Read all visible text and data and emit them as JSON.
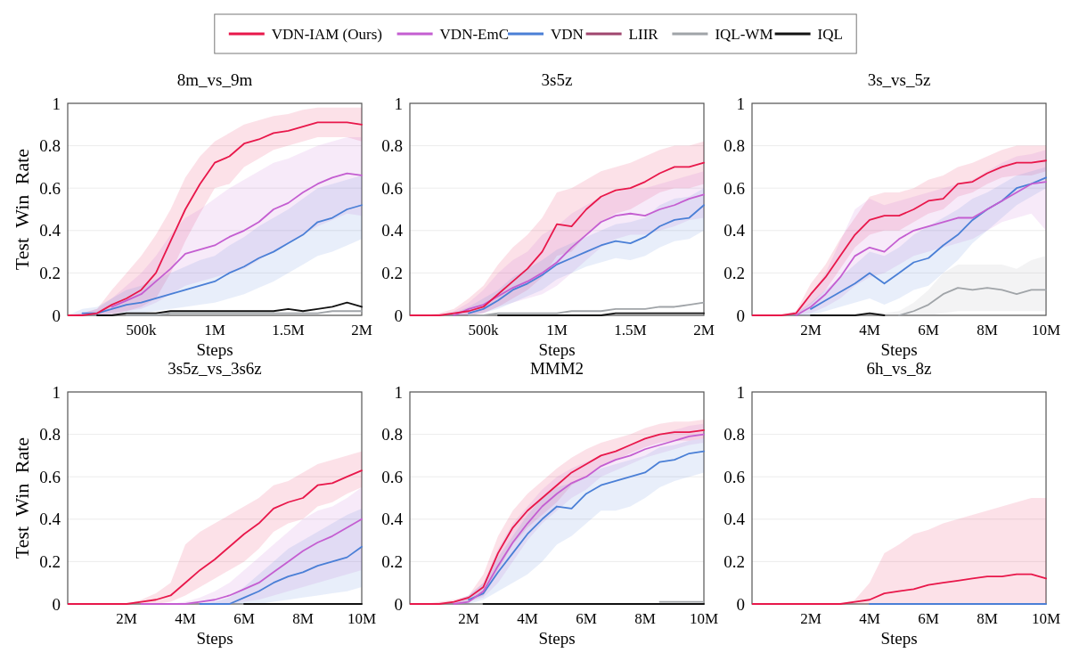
{
  "chart_data": [
    {
      "type": "line",
      "title": "8m_vs_9m",
      "xlabel": "Steps",
      "ylabel": "Test Win Rate",
      "legend": "top",
      "grid": "y",
      "xlim": [
        0,
        2000000
      ],
      "xticks": [
        {
          "value": 500000,
          "label": "500k"
        },
        {
          "value": 1000000,
          "label": "1M"
        },
        {
          "value": 1500000,
          "label": "1.5M"
        },
        {
          "value": 2000000,
          "label": "2M"
        }
      ],
      "ylim": [
        0,
        1
      ],
      "yticks": [
        0,
        0.2,
        0.4,
        0.6,
        0.8,
        1
      ],
      "x": [
        0,
        100000,
        200000,
        300000,
        400000,
        500000,
        600000,
        700000,
        800000,
        900000,
        1000000,
        1100000,
        1200000,
        1300000,
        1400000,
        1500000,
        1600000,
        1700000,
        1800000,
        1900000,
        2000000
      ],
      "series": [
        {
          "name": "VDN-IAM (Ours)",
          "color": "#e8174a",
          "values": [
            0,
            0,
            0.01,
            0.05,
            0.08,
            0.12,
            0.2,
            0.35,
            0.5,
            0.62,
            0.72,
            0.75,
            0.81,
            0.83,
            0.86,
            0.87,
            0.89,
            0.91,
            0.91,
            0.91,
            0.9
          ],
          "lower": [
            0,
            0,
            0,
            0,
            0.02,
            0.04,
            0.08,
            0.2,
            0.35,
            0.48,
            0.6,
            0.62,
            0.7,
            0.74,
            0.78,
            0.8,
            0.82,
            0.84,
            0.84,
            0.84,
            0.82
          ],
          "upper": [
            0,
            0.01,
            0.03,
            0.12,
            0.2,
            0.28,
            0.38,
            0.5,
            0.65,
            0.75,
            0.82,
            0.86,
            0.9,
            0.92,
            0.94,
            0.95,
            0.97,
            0.98,
            0.98,
            0.98,
            0.98
          ]
        },
        {
          "name": "VDN-EmC",
          "color": "#c45ed1",
          "values": [
            null,
            null,
            null,
            0.04,
            0.07,
            0.1,
            0.16,
            0.22,
            0.29,
            0.31,
            0.33,
            0.37,
            0.4,
            0.44,
            0.5,
            0.53,
            0.58,
            0.62,
            0.65,
            0.67,
            0.66
          ],
          "lower": [
            0,
            0,
            0,
            0.01,
            0.02,
            0.03,
            0.06,
            0.1,
            0.14,
            0.16,
            0.18,
            0.2,
            0.22,
            0.26,
            0.3,
            0.34,
            0.38,
            0.42,
            0.45,
            0.48,
            0.47
          ],
          "upper": [
            0,
            0.01,
            0.03,
            0.08,
            0.14,
            0.2,
            0.28,
            0.38,
            0.46,
            0.5,
            0.55,
            0.6,
            0.64,
            0.68,
            0.72,
            0.74,
            0.77,
            0.8,
            0.82,
            0.84,
            0.84
          ]
        },
        {
          "name": "VDN",
          "color": "#4a7fd6",
          "values": [
            null,
            0.01,
            0.01,
            0.03,
            0.05,
            0.06,
            0.08,
            0.1,
            0.12,
            0.14,
            0.16,
            0.2,
            0.23,
            0.27,
            0.3,
            0.34,
            0.38,
            0.44,
            0.46,
            0.5,
            0.52
          ],
          "lower": [
            0,
            0,
            0,
            0,
            0.01,
            0.01,
            0.02,
            0.03,
            0.04,
            0.05,
            0.06,
            0.08,
            0.1,
            0.13,
            0.16,
            0.2,
            0.24,
            0.28,
            0.3,
            0.33,
            0.36
          ],
          "upper": [
            0,
            0.03,
            0.04,
            0.08,
            0.12,
            0.14,
            0.17,
            0.2,
            0.23,
            0.26,
            0.28,
            0.33,
            0.37,
            0.42,
            0.46,
            0.5,
            0.55,
            0.6,
            0.62,
            0.64,
            0.66
          ]
        },
        {
          "name": "LIIR",
          "color": "#a0456e",
          "values": [
            null,
            null,
            null,
            null,
            null,
            null,
            null,
            null,
            null,
            null,
            null,
            null,
            null,
            null,
            null,
            null,
            null,
            null,
            null,
            null,
            null
          ]
        },
        {
          "name": "IQL-WM",
          "color": "#a0a4a8",
          "values": [
            null,
            null,
            null,
            null,
            0,
            0,
            0,
            0.01,
            0.01,
            0.01,
            0.01,
            0.01,
            0.01,
            0.01,
            0.01,
            0.01,
            0.01,
            0.01,
            0.02,
            0.02,
            0.02
          ]
        },
        {
          "name": "IQL",
          "color": "#111111",
          "values": [
            null,
            null,
            0,
            0,
            0.01,
            0.01,
            0.01,
            0.02,
            0.02,
            0.02,
            0.02,
            0.02,
            0.02,
            0.02,
            0.02,
            0.03,
            0.02,
            0.03,
            0.04,
            0.06,
            0.04
          ]
        }
      ]
    },
    {
      "type": "line",
      "title": "3s5z",
      "xlabel": "Steps",
      "grid": "y",
      "xlim": [
        0,
        2000000
      ],
      "xticks": [
        {
          "value": 500000,
          "label": "500k"
        },
        {
          "value": 1000000,
          "label": "1M"
        },
        {
          "value": 1500000,
          "label": "1.5M"
        },
        {
          "value": 2000000,
          "label": "2M"
        }
      ],
      "ylim": [
        0,
        1
      ],
      "yticks": [
        0,
        0.2,
        0.4,
        0.6,
        0.8,
        1
      ],
      "x": [
        0,
        100000,
        200000,
        300000,
        400000,
        500000,
        600000,
        700000,
        800000,
        900000,
        1000000,
        1100000,
        1200000,
        1300000,
        1400000,
        1500000,
        1600000,
        1700000,
        1800000,
        1900000,
        2000000
      ],
      "series": [
        {
          "color": "#e8174a",
          "values": [
            0,
            0,
            0,
            0.01,
            0.02,
            0.04,
            0.1,
            0.16,
            0.22,
            0.3,
            0.43,
            0.42,
            0.5,
            0.56,
            0.59,
            0.6,
            0.63,
            0.67,
            0.7,
            0.7,
            0.72
          ],
          "lower": [
            0,
            0,
            0,
            0,
            0,
            0.01,
            0.04,
            0.08,
            0.12,
            0.18,
            0.28,
            0.3,
            0.38,
            0.44,
            0.48,
            0.5,
            0.54,
            0.58,
            0.6,
            0.6,
            0.62
          ],
          "upper": [
            0,
            0,
            0.01,
            0.03,
            0.08,
            0.14,
            0.24,
            0.32,
            0.38,
            0.46,
            0.58,
            0.6,
            0.64,
            0.68,
            0.7,
            0.72,
            0.75,
            0.78,
            0.8,
            0.8,
            0.82
          ]
        },
        {
          "color": "#c45ed1",
          "values": [
            null,
            null,
            null,
            0,
            0.03,
            0.05,
            0.09,
            0.13,
            0.16,
            0.2,
            0.25,
            0.32,
            0.38,
            0.44,
            0.47,
            0.48,
            0.47,
            0.5,
            0.52,
            0.55,
            0.57
          ],
          "lower": [
            0,
            0,
            0,
            0,
            0,
            0.01,
            0.04,
            0.06,
            0.08,
            0.1,
            0.14,
            0.2,
            0.26,
            0.32,
            0.36,
            0.38,
            0.38,
            0.4,
            0.42,
            0.45,
            0.46
          ],
          "upper": [
            0,
            0,
            0,
            0.02,
            0.06,
            0.12,
            0.2,
            0.26,
            0.3,
            0.38,
            0.42,
            0.48,
            0.52,
            0.56,
            0.58,
            0.6,
            0.6,
            0.62,
            0.64,
            0.66,
            0.68
          ]
        },
        {
          "color": "#4a7fd6",
          "values": [
            null,
            null,
            null,
            null,
            0.01,
            0.03,
            0.07,
            0.12,
            0.15,
            0.19,
            0.24,
            0.27,
            0.3,
            0.33,
            0.35,
            0.34,
            0.37,
            0.42,
            0.45,
            0.46,
            0.52
          ],
          "lower": [
            0,
            0,
            0,
            0,
            0,
            0.01,
            0.03,
            0.06,
            0.09,
            0.12,
            0.17,
            0.2,
            0.23,
            0.25,
            0.27,
            0.26,
            0.28,
            0.32,
            0.35,
            0.36,
            0.4
          ],
          "upper": [
            0,
            0,
            0,
            0.01,
            0.04,
            0.08,
            0.12,
            0.18,
            0.22,
            0.26,
            0.31,
            0.34,
            0.37,
            0.4,
            0.43,
            0.44,
            0.46,
            0.52,
            0.55,
            0.56,
            0.6
          ]
        },
        {
          "color": "#a0456e",
          "values": [
            null,
            null,
            null,
            null,
            null,
            null,
            null,
            null,
            null,
            null,
            null,
            null,
            null,
            null,
            null,
            null,
            null,
            null,
            null,
            null,
            null
          ]
        },
        {
          "color": "#a0a4a8",
          "values": [
            null,
            null,
            null,
            null,
            0,
            0,
            0.01,
            0.01,
            0.01,
            0.01,
            0.01,
            0.02,
            0.02,
            0.02,
            0.03,
            0.03,
            0.03,
            0.04,
            0.04,
            0.05,
            0.06
          ]
        },
        {
          "color": "#111111",
          "values": [
            null,
            null,
            null,
            null,
            null,
            null,
            0,
            0,
            0,
            0,
            0,
            0,
            0,
            0,
            0.01,
            0.01,
            0.01,
            0.01,
            0.01,
            0.01,
            0.01
          ]
        }
      ]
    },
    {
      "type": "line",
      "title": "3s_vs_5z",
      "xlabel": "Steps",
      "grid": "y",
      "xlim": [
        0,
        10000000
      ],
      "xticks": [
        {
          "value": 2000000,
          "label": "2M"
        },
        {
          "value": 4000000,
          "label": "4M"
        },
        {
          "value": 6000000,
          "label": "6M"
        },
        {
          "value": 8000000,
          "label": "8M"
        },
        {
          "value": 10000000,
          "label": "10M"
        }
      ],
      "ylim": [
        0,
        1
      ],
      "yticks": [
        0,
        0.2,
        0.4,
        0.6,
        0.8,
        1
      ],
      "x": [
        0,
        500000,
        1000000,
        1500000,
        2000000,
        2500000,
        3000000,
        3500000,
        4000000,
        4500000,
        5000000,
        5500000,
        6000000,
        6500000,
        7000000,
        7500000,
        8000000,
        8500000,
        9000000,
        9500000,
        10000000
      ],
      "series": [
        {
          "color": "#e8174a",
          "values": [
            0,
            0,
            0,
            0.01,
            0.1,
            0.18,
            0.28,
            0.38,
            0.45,
            0.47,
            0.47,
            0.5,
            0.54,
            0.55,
            0.62,
            0.63,
            0.67,
            0.7,
            0.72,
            0.72,
            0.73
          ],
          "lower": [
            0,
            0,
            0,
            0,
            0.05,
            0.12,
            0.22,
            0.32,
            0.38,
            0.4,
            0.4,
            0.44,
            0.48,
            0.5,
            0.56,
            0.58,
            0.62,
            0.65,
            0.66,
            0.66,
            0.68
          ],
          "upper": [
            0,
            0,
            0,
            0.02,
            0.15,
            0.24,
            0.36,
            0.46,
            0.56,
            0.58,
            0.58,
            0.6,
            0.64,
            0.66,
            0.7,
            0.72,
            0.75,
            0.78,
            0.8,
            0.8,
            0.8
          ]
        },
        {
          "color": "#c45ed1",
          "values": [
            null,
            null,
            null,
            0,
            0.04,
            0.1,
            0.18,
            0.28,
            0.32,
            0.3,
            0.36,
            0.4,
            0.42,
            0.44,
            0.46,
            0.46,
            0.5,
            0.54,
            0.58,
            0.62,
            0.63
          ],
          "lower": [
            0,
            0,
            0,
            0,
            0.01,
            0.04,
            0.08,
            0.14,
            0.18,
            0.2,
            0.24,
            0.28,
            0.3,
            0.32,
            0.34,
            0.36,
            0.4,
            0.44,
            0.46,
            0.48,
            0.4
          ],
          "upper": [
            0,
            0,
            0,
            0.02,
            0.1,
            0.2,
            0.35,
            0.5,
            0.55,
            0.52,
            0.54,
            0.56,
            0.58,
            0.6,
            0.62,
            0.64,
            0.68,
            0.72,
            0.75,
            0.76,
            0.78
          ]
        },
        {
          "color": "#4a7fd6",
          "values": [
            null,
            null,
            null,
            null,
            0.03,
            0.07,
            0.11,
            0.15,
            0.2,
            0.15,
            0.2,
            0.25,
            0.27,
            0.33,
            0.38,
            0.45,
            0.5,
            0.54,
            0.6,
            0.62,
            0.65
          ],
          "lower": [
            0,
            0,
            0,
            0,
            0,
            0.02,
            0.04,
            0.06,
            0.08,
            0.05,
            0.08,
            0.12,
            0.14,
            0.2,
            0.26,
            0.34,
            0.4,
            0.46,
            0.52,
            0.56,
            0.6
          ],
          "upper": [
            0,
            0,
            0,
            0.01,
            0.06,
            0.12,
            0.18,
            0.24,
            0.3,
            0.28,
            0.32,
            0.38,
            0.42,
            0.46,
            0.5,
            0.55,
            0.58,
            0.62,
            0.66,
            0.68,
            0.7
          ]
        },
        {
          "color": "#a0456e",
          "values": [
            null,
            null,
            null,
            null,
            null,
            null,
            null,
            null,
            null,
            null,
            null,
            null,
            null,
            null,
            null,
            null,
            null,
            null,
            null,
            null,
            null
          ]
        },
        {
          "color": "#a0a4a8",
          "values": [
            null,
            null,
            null,
            null,
            null,
            null,
            null,
            null,
            null,
            null,
            0,
            0.02,
            0.05,
            0.1,
            0.13,
            0.12,
            0.13,
            0.12,
            0.1,
            0.12,
            0.12
          ],
          "lower": [
            0,
            0,
            0,
            0,
            0,
            0,
            0,
            0,
            0,
            0,
            0,
            0,
            0,
            0.01,
            0.02,
            0.02,
            0.02,
            0.02,
            0.02,
            0.02,
            0.02
          ],
          "upper": [
            0,
            0,
            0,
            0,
            0,
            0,
            0,
            0,
            0.01,
            0.01,
            0.02,
            0.06,
            0.12,
            0.2,
            0.24,
            0.24,
            0.24,
            0.24,
            0.22,
            0.26,
            0.28
          ]
        },
        {
          "color": "#111111",
          "values": [
            null,
            null,
            null,
            null,
            0,
            0,
            0,
            0,
            0.01,
            0,
            null,
            null,
            null,
            null,
            null,
            null,
            null,
            null,
            null,
            null,
            null
          ]
        }
      ]
    },
    {
      "type": "line",
      "title": "3s5z_vs_3s6z",
      "xlabel": "Steps",
      "ylabel": "Test Win Rate",
      "grid": "y",
      "xlim": [
        0,
        10000000
      ],
      "xticks": [
        {
          "value": 2000000,
          "label": "2M"
        },
        {
          "value": 4000000,
          "label": "4M"
        },
        {
          "value": 6000000,
          "label": "6M"
        },
        {
          "value": 8000000,
          "label": "8M"
        },
        {
          "value": 10000000,
          "label": "10M"
        }
      ],
      "ylim": [
        0,
        1
      ],
      "yticks": [
        0,
        0.2,
        0.4,
        0.6,
        0.8,
        1
      ],
      "x": [
        0,
        500000,
        1000000,
        1500000,
        2000000,
        2500000,
        3000000,
        3500000,
        4000000,
        4500000,
        5000000,
        5500000,
        6000000,
        6500000,
        7000000,
        7500000,
        8000000,
        8500000,
        9000000,
        9500000,
        10000000
      ],
      "series": [
        {
          "color": "#e8174a",
          "values": [
            0,
            0,
            0,
            0,
            0,
            0.01,
            0.02,
            0.04,
            0.1,
            0.16,
            0.21,
            0.27,
            0.33,
            0.38,
            0.45,
            0.48,
            0.5,
            0.56,
            0.57,
            0.6,
            0.63
          ],
          "lower": [
            0,
            0,
            0,
            0,
            0,
            0,
            0,
            0.01,
            0.04,
            0.08,
            0.12,
            0.16,
            0.2,
            0.26,
            0.34,
            0.38,
            0.4,
            0.46,
            0.48,
            0.52,
            0.55
          ],
          "upper": [
            0,
            0,
            0,
            0,
            0,
            0.02,
            0.05,
            0.1,
            0.28,
            0.34,
            0.38,
            0.42,
            0.46,
            0.5,
            0.56,
            0.58,
            0.62,
            0.66,
            0.68,
            0.7,
            0.72
          ]
        },
        {
          "color": "#c45ed1",
          "values": [
            null,
            null,
            null,
            null,
            null,
            0,
            0,
            0,
            0,
            0.01,
            0.02,
            0.04,
            0.07,
            0.1,
            0.15,
            0.2,
            0.25,
            0.29,
            0.32,
            0.36,
            0.4
          ],
          "lower": [
            0,
            0,
            0,
            0,
            0,
            0,
            0,
            0,
            0,
            0,
            0,
            0,
            0.01,
            0.02,
            0.04,
            0.06,
            0.08,
            0.1,
            0.12,
            0.14,
            0.16
          ],
          "upper": [
            0,
            0,
            0,
            0,
            0,
            0,
            0,
            0,
            0.01,
            0.03,
            0.06,
            0.1,
            0.16,
            0.22,
            0.28,
            0.34,
            0.4,
            0.44,
            0.46,
            0.5,
            0.55
          ]
        },
        {
          "color": "#4a7fd6",
          "values": [
            null,
            null,
            null,
            null,
            null,
            null,
            null,
            null,
            null,
            0,
            0,
            0,
            0.03,
            0.06,
            0.1,
            0.13,
            0.15,
            0.18,
            0.2,
            0.22,
            0.27
          ],
          "lower": [
            0,
            0,
            0,
            0,
            0,
            0,
            0,
            0,
            0,
            0,
            0,
            0,
            0,
            0,
            0.01,
            0.02,
            0.03,
            0.04,
            0.05,
            0.06,
            0.08
          ],
          "upper": [
            0,
            0,
            0,
            0,
            0,
            0,
            0,
            0,
            0,
            0,
            0.01,
            0.03,
            0.08,
            0.14,
            0.2,
            0.26,
            0.3,
            0.34,
            0.38,
            0.42,
            0.45
          ]
        },
        {
          "color": "#a0456e",
          "values": [
            null,
            null,
            null,
            null,
            null,
            null,
            null,
            null,
            null,
            null,
            null,
            null,
            null,
            null,
            null,
            null,
            null,
            null,
            null,
            null,
            null
          ]
        },
        {
          "color": "#a0a4a8",
          "values": [
            null,
            null,
            null,
            null,
            null,
            null,
            null,
            null,
            null,
            null,
            null,
            null,
            null,
            null,
            null,
            null,
            null,
            null,
            null,
            null,
            null
          ]
        },
        {
          "color": "#111111",
          "values": [
            null,
            null,
            null,
            null,
            null,
            null,
            null,
            null,
            null,
            null,
            null,
            null,
            0,
            0,
            0,
            0,
            0,
            0,
            0,
            0,
            0
          ]
        }
      ]
    },
    {
      "type": "line",
      "title": "MMM2",
      "xlabel": "Steps",
      "grid": "y",
      "xlim": [
        0,
        10000000
      ],
      "xticks": [
        {
          "value": 2000000,
          "label": "2M"
        },
        {
          "value": 4000000,
          "label": "4M"
        },
        {
          "value": 6000000,
          "label": "6M"
        },
        {
          "value": 8000000,
          "label": "8M"
        },
        {
          "value": 10000000,
          "label": "10M"
        }
      ],
      "ylim": [
        0,
        1
      ],
      "yticks": [
        0,
        0.2,
        0.4,
        0.6,
        0.8,
        1
      ],
      "x": [
        0,
        500000,
        1000000,
        1500000,
        2000000,
        2500000,
        3000000,
        3500000,
        4000000,
        4500000,
        5000000,
        5500000,
        6000000,
        6500000,
        7000000,
        7500000,
        8000000,
        8500000,
        9000000,
        9500000,
        10000000
      ],
      "series": [
        {
          "color": "#e8174a",
          "values": [
            0,
            0,
            0,
            0.01,
            0.03,
            0.08,
            0.24,
            0.36,
            0.44,
            0.5,
            0.56,
            0.62,
            0.66,
            0.7,
            0.72,
            0.75,
            0.78,
            0.8,
            0.81,
            0.81,
            0.82
          ],
          "lower": [
            0,
            0,
            0,
            0,
            0.01,
            0.04,
            0.16,
            0.28,
            0.36,
            0.42,
            0.48,
            0.56,
            0.6,
            0.65,
            0.68,
            0.71,
            0.74,
            0.76,
            0.77,
            0.77,
            0.78
          ],
          "upper": [
            0,
            0,
            0.01,
            0.02,
            0.04,
            0.14,
            0.32,
            0.44,
            0.52,
            0.58,
            0.64,
            0.69,
            0.73,
            0.76,
            0.78,
            0.8,
            0.83,
            0.85,
            0.86,
            0.86,
            0.87
          ]
        },
        {
          "color": "#c45ed1",
          "values": [
            null,
            null,
            null,
            0,
            0.01,
            0.06,
            0.18,
            0.29,
            0.38,
            0.46,
            0.52,
            0.57,
            0.6,
            0.65,
            0.68,
            0.7,
            0.73,
            0.75,
            0.77,
            0.79,
            0.8
          ],
          "lower": [
            0,
            0,
            0,
            0,
            0.01,
            0.03,
            0.1,
            0.2,
            0.3,
            0.38,
            0.44,
            0.5,
            0.54,
            0.6,
            0.63,
            0.66,
            0.69,
            0.71,
            0.73,
            0.75,
            0.76
          ],
          "upper": [
            0,
            0,
            0,
            0.01,
            0.04,
            0.1,
            0.26,
            0.38,
            0.46,
            0.54,
            0.6,
            0.64,
            0.67,
            0.7,
            0.72,
            0.75,
            0.78,
            0.8,
            0.82,
            0.84,
            0.85
          ]
        },
        {
          "color": "#4a7fd6",
          "values": [
            null,
            null,
            null,
            null,
            0.02,
            0.05,
            0.15,
            0.24,
            0.33,
            0.4,
            0.46,
            0.45,
            0.52,
            0.56,
            0.58,
            0.6,
            0.62,
            0.67,
            0.68,
            0.71,
            0.72
          ],
          "lower": [
            0,
            0,
            0,
            0,
            0,
            0.02,
            0.06,
            0.1,
            0.14,
            0.2,
            0.28,
            0.32,
            0.38,
            0.44,
            0.44,
            0.46,
            0.5,
            0.55,
            0.58,
            0.6,
            0.62
          ],
          "upper": [
            0,
            0,
            0,
            0.01,
            0.04,
            0.1,
            0.22,
            0.32,
            0.42,
            0.5,
            0.55,
            0.57,
            0.6,
            0.64,
            0.66,
            0.68,
            0.7,
            0.74,
            0.75,
            0.77,
            0.78
          ]
        },
        {
          "color": "#a0456e",
          "values": [
            null,
            null,
            null,
            null,
            null,
            null,
            null,
            null,
            null,
            null,
            null,
            null,
            null,
            null,
            null,
            null,
            null,
            null,
            null,
            null,
            null
          ]
        },
        {
          "color": "#a0a4a8",
          "values": [
            null,
            null,
            null,
            null,
            null,
            null,
            null,
            null,
            null,
            null,
            null,
            null,
            null,
            null,
            null,
            null,
            null,
            0.01,
            0.01,
            0.01,
            0.01
          ]
        },
        {
          "color": "#111111",
          "values": [
            null,
            null,
            null,
            null,
            null,
            0,
            0,
            0,
            0,
            0,
            0,
            0,
            0,
            0,
            0,
            0,
            0,
            0,
            0,
            0,
            0
          ]
        }
      ]
    },
    {
      "type": "line",
      "title": "6h_vs_8z",
      "xlabel": "Steps",
      "grid": "y",
      "xlim": [
        0,
        10000000
      ],
      "xticks": [
        {
          "value": 2000000,
          "label": "2M"
        },
        {
          "value": 4000000,
          "label": "4M"
        },
        {
          "value": 6000000,
          "label": "6M"
        },
        {
          "value": 8000000,
          "label": "8M"
        },
        {
          "value": 10000000,
          "label": "10M"
        }
      ],
      "ylim": [
        0,
        1
      ],
      "yticks": [
        0,
        0.2,
        0.4,
        0.6,
        0.8,
        1
      ],
      "x": [
        0,
        500000,
        1000000,
        1500000,
        2000000,
        2500000,
        3000000,
        3500000,
        4000000,
        4500000,
        5000000,
        5500000,
        6000000,
        6500000,
        7000000,
        7500000,
        8000000,
        8500000,
        9000000,
        9500000,
        10000000
      ],
      "series": [
        {
          "color": "#e8174a",
          "values": [
            0,
            0,
            0,
            0,
            0,
            0,
            0,
            0.01,
            0.02,
            0.05,
            0.06,
            0.07,
            0.09,
            0.1,
            0.11,
            0.12,
            0.13,
            0.13,
            0.14,
            0.14,
            0.12
          ],
          "lower": [
            0,
            0,
            0,
            0,
            0,
            0,
            0,
            0,
            0,
            0,
            0,
            0,
            0,
            0,
            0,
            0,
            0,
            0,
            0,
            0,
            0
          ],
          "upper": [
            0,
            0,
            0,
            0,
            0,
            0,
            0,
            0.02,
            0.1,
            0.24,
            0.28,
            0.33,
            0.35,
            0.38,
            0.4,
            0.42,
            0.44,
            0.46,
            0.48,
            0.5,
            0.5
          ]
        },
        {
          "color": "#c45ed1",
          "values": [
            null,
            null,
            null,
            null,
            null,
            null,
            null,
            null,
            null,
            null,
            null,
            null,
            null,
            null,
            null,
            null,
            null,
            null,
            null,
            null,
            null
          ]
        },
        {
          "color": "#4a7fd6",
          "values": [
            null,
            null,
            null,
            null,
            null,
            null,
            null,
            null,
            0,
            0,
            0,
            0,
            0,
            0,
            0,
            0,
            0,
            0,
            0,
            0,
            0
          ]
        },
        {
          "color": "#a0456e",
          "values": [
            null,
            null,
            null,
            null,
            null,
            null,
            null,
            null,
            null,
            null,
            null,
            null,
            null,
            null,
            null,
            null,
            null,
            null,
            null,
            null,
            null
          ]
        },
        {
          "color": "#a0a4a8",
          "values": [
            null,
            null,
            null,
            null,
            null,
            null,
            null,
            null,
            null,
            null,
            null,
            null,
            null,
            null,
            null,
            null,
            null,
            null,
            null,
            null,
            null
          ]
        },
        {
          "color": "#111111",
          "values": [
            null,
            null,
            null,
            null,
            null,
            null,
            null,
            null,
            null,
            null,
            null,
            null,
            null,
            null,
            null,
            null,
            null,
            null,
            null,
            null,
            null
          ]
        }
      ]
    }
  ]
}
